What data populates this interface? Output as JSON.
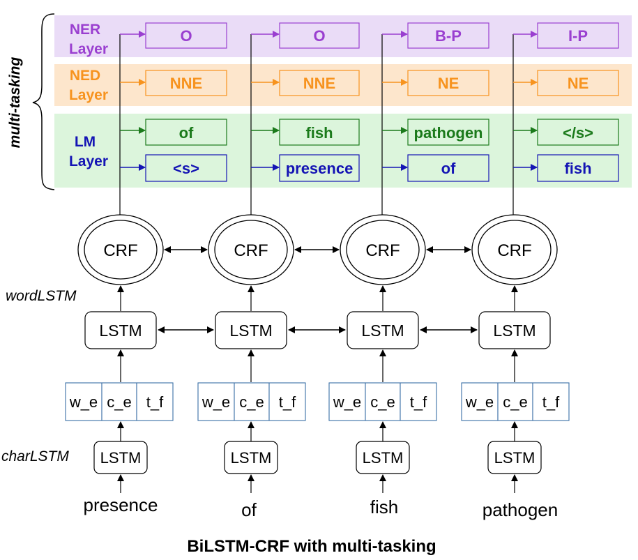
{
  "labels": {
    "multi_tasking": "multi-tasking",
    "ner_layer": [
      "NER",
      "Layer"
    ],
    "ned_layer": [
      "NED",
      "Layer"
    ],
    "lm_layer": [
      "LM",
      "Layer"
    ],
    "word_lstm": "wordLSTM",
    "char_lstm": "charLSTM",
    "caption": "BiLSTM-CRF with multi-tasking"
  },
  "columns": [
    {
      "word": "presence",
      "ner": "O",
      "ned": "NNE",
      "lm_fwd": "of",
      "lm_bwd": "<s>"
    },
    {
      "word": "of",
      "ner": "O",
      "ned": "NNE",
      "lm_fwd": "fish",
      "lm_bwd": "presence"
    },
    {
      "word": "fish",
      "ner": "B-P",
      "ned": "NE",
      "lm_fwd": "pathogen",
      "lm_bwd": "of"
    },
    {
      "word": "pathogen",
      "ner": "I-P",
      "ned": "NE",
      "lm_fwd": "</s>",
      "lm_bwd": "fish"
    }
  ],
  "nodes": {
    "crf": "CRF",
    "lstm": "LSTM",
    "char_lstm": "LSTM",
    "features": [
      "w_e",
      "c_e",
      "t_f"
    ]
  },
  "colors": {
    "ner": "#9a3fd0",
    "ner_band": "#eadcf7",
    "ned": "#f7931e",
    "ned_band": "#fde6cc",
    "lm_band": "#dcf5dc",
    "lm_fwd": "#1b7a1b",
    "lm_bwd": "#1414b4",
    "feature_border": "#3a6ea5"
  }
}
